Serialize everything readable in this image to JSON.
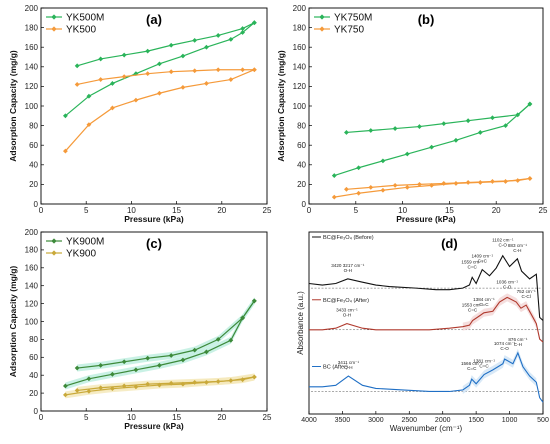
{
  "charts": [
    {
      "type": "line",
      "panel": "(a)",
      "xlabel": "Pressure (kPa)",
      "ylabel": "Adsorption Capacity (mg/g)",
      "xlim": [
        0,
        25
      ],
      "ylim": [
        0,
        200
      ],
      "xticks": [
        0,
        5,
        10,
        15,
        20,
        25
      ],
      "yticks": [
        0,
        20,
        40,
        60,
        80,
        100,
        120,
        140,
        160,
        180,
        200
      ],
      "legend_position": "top-left",
      "series": [
        {
          "name": "YK500M",
          "color": "#2ab45a",
          "adsorption": [
            [
              2.7,
              90
            ],
            [
              5.3,
              110
            ],
            [
              7.9,
              123
            ],
            [
              10.5,
              133
            ],
            [
              13.1,
              143
            ],
            [
              15.7,
              151
            ],
            [
              18.3,
              160
            ],
            [
              21.0,
              168
            ],
            [
              22.3,
              175
            ],
            [
              23.6,
              185
            ]
          ],
          "desorption": [
            [
              4.0,
              141
            ],
            [
              6.6,
              148
            ],
            [
              9.2,
              152
            ],
            [
              11.8,
              156
            ],
            [
              14.4,
              162
            ],
            [
              17.0,
              167
            ],
            [
              19.6,
              172
            ],
            [
              22.3,
              179
            ],
            [
              23.6,
              185
            ]
          ]
        },
        {
          "name": "YK500",
          "color": "#f59a3a",
          "adsorption": [
            [
              2.7,
              54
            ],
            [
              5.3,
              81
            ],
            [
              7.9,
              98
            ],
            [
              10.5,
              106
            ],
            [
              13.1,
              113
            ],
            [
              15.7,
              119
            ],
            [
              18.3,
              123
            ],
            [
              21.0,
              127
            ],
            [
              23.6,
              137
            ]
          ],
          "desorption": [
            [
              4.0,
              122
            ],
            [
              6.6,
              127
            ],
            [
              9.2,
              130
            ],
            [
              11.8,
              133
            ],
            [
              14.4,
              135
            ],
            [
              17.0,
              136
            ],
            [
              19.6,
              137
            ],
            [
              22.3,
              137
            ],
            [
              23.6,
              137
            ]
          ]
        }
      ]
    },
    {
      "type": "line",
      "panel": "(b)",
      "xlabel": "Pressure (kPa)",
      "ylabel": "Adsorption Capacity (mg/g)",
      "xlim": [
        0,
        25
      ],
      "ylim": [
        0,
        200
      ],
      "xticks": [
        0,
        5,
        10,
        15,
        20,
        25
      ],
      "yticks": [
        0,
        20,
        40,
        60,
        80,
        100,
        120,
        140,
        160,
        180,
        200
      ],
      "legend_position": "top-left",
      "series": [
        {
          "name": "YK750M",
          "color": "#2ab45a",
          "adsorption": [
            [
              2.7,
              29
            ],
            [
              5.3,
              37
            ],
            [
              7.9,
              44
            ],
            [
              10.5,
              51
            ],
            [
              13.1,
              58
            ],
            [
              15.7,
              65
            ],
            [
              18.3,
              73
            ],
            [
              21.0,
              80
            ],
            [
              23.6,
              102
            ]
          ],
          "desorption": [
            [
              4.0,
              73
            ],
            [
              6.6,
              75
            ],
            [
              9.2,
              77
            ],
            [
              11.8,
              79
            ],
            [
              14.4,
              82
            ],
            [
              17.0,
              85
            ],
            [
              19.6,
              88
            ],
            [
              22.3,
              91
            ],
            [
              23.6,
              102
            ]
          ]
        },
        {
          "name": "YK750",
          "color": "#f59a3a",
          "adsorption": [
            [
              2.7,
              7
            ],
            [
              5.3,
              11
            ],
            [
              7.9,
              14
            ],
            [
              10.5,
              17
            ],
            [
              13.1,
              19
            ],
            [
              15.7,
              21
            ],
            [
              18.3,
              22
            ],
            [
              21.0,
              23
            ],
            [
              23.6,
              26
            ]
          ],
          "desorption": [
            [
              4.0,
              15
            ],
            [
              6.6,
              17
            ],
            [
              9.2,
              19
            ],
            [
              11.8,
              20
            ],
            [
              14.4,
              21
            ],
            [
              17.0,
              22
            ],
            [
              19.6,
              23
            ],
            [
              22.3,
              24
            ],
            [
              23.6,
              26
            ]
          ]
        }
      ]
    },
    {
      "type": "line",
      "panel": "(c)",
      "xlabel": "Pressure (kPa)",
      "ylabel": "Adsorption Capacity (mg/g)",
      "xlim": [
        0,
        25
      ],
      "ylim": [
        0,
        200
      ],
      "xticks": [
        0,
        5,
        10,
        15,
        20,
        25
      ],
      "yticks": [
        0,
        20,
        40,
        60,
        80,
        100,
        120,
        140,
        160,
        180,
        200
      ],
      "legend_position": "top-left",
      "series": [
        {
          "name": "YK900M",
          "color": "#3d8a3a",
          "band_color": "#bfeee0",
          "adsorption": [
            [
              2.7,
              28
            ],
            [
              5.3,
              36
            ],
            [
              7.9,
              41
            ],
            [
              10.5,
              46
            ],
            [
              13.1,
              51
            ],
            [
              15.7,
              57
            ],
            [
              18.3,
              66
            ],
            [
              21.0,
              79
            ],
            [
              22.3,
              104
            ],
            [
              23.6,
              123
            ]
          ],
          "desorption": [
            [
              4.0,
              48
            ],
            [
              6.6,
              51
            ],
            [
              9.2,
              55
            ],
            [
              11.8,
              59
            ],
            [
              14.4,
              62
            ],
            [
              17.0,
              68
            ],
            [
              19.6,
              80
            ],
            [
              22.3,
              104
            ],
            [
              23.6,
              123
            ]
          ]
        },
        {
          "name": "YK900",
          "color": "#c9a93a",
          "band_color": "#f5e9bb",
          "adsorption": [
            [
              2.7,
              18
            ],
            [
              5.3,
              22
            ],
            [
              7.9,
              25
            ],
            [
              10.5,
              27
            ],
            [
              13.1,
              29
            ],
            [
              15.7,
              30
            ],
            [
              18.3,
              32
            ],
            [
              21.0,
              34
            ],
            [
              23.6,
              38
            ]
          ],
          "desorption": [
            [
              4.0,
              23
            ],
            [
              6.6,
              26
            ],
            [
              9.2,
              28
            ],
            [
              11.8,
              30
            ],
            [
              14.4,
              31
            ],
            [
              17.0,
              32
            ],
            [
              19.6,
              33
            ],
            [
              22.3,
              35
            ],
            [
              23.6,
              38
            ]
          ]
        }
      ]
    },
    {
      "type": "line",
      "panel": "(d)",
      "xlabel": "Wavenumber (cm⁻¹)",
      "ylabel": "Absorbance (a.u.)",
      "xlim": [
        4000,
        500
      ],
      "xticks": [
        4000,
        3500,
        3000,
        2500,
        2000,
        1500,
        1000,
        500
      ],
      "x_reversed": true,
      "legend_position": "top-left of each trace",
      "series": [
        {
          "name": "BC@Fe₃O₄ (Before)",
          "color": "#111111",
          "peaks": [
            [
              4000,
              0.82
            ],
            [
              3800,
              0.81
            ],
            [
              3600,
              0.82
            ],
            [
              3420,
              0.85
            ],
            [
              3217,
              0.83
            ],
            [
              3000,
              0.81
            ],
            [
              2800,
              0.8
            ],
            [
              2400,
              0.79
            ],
            [
              2100,
              0.78
            ],
            [
              1900,
              0.78
            ],
            [
              1700,
              0.79
            ],
            [
              1600,
              0.81
            ],
            [
              1559,
              0.86
            ],
            [
              1500,
              0.82
            ],
            [
              1409,
              0.91
            ],
            [
              1300,
              0.87
            ],
            [
              1200,
              0.92
            ],
            [
              1102,
              1.0
            ],
            [
              1000,
              0.93
            ],
            [
              883,
              0.98
            ],
            [
              820,
              0.9
            ],
            [
              700,
              0.85
            ],
            [
              600,
              0.88
            ],
            [
              550,
              0.6
            ],
            [
              500,
              0.58
            ]
          ],
          "annotations": [
            {
              "x": 3420,
              "label": "3420 3217 cm⁻¹",
              "sub": "O-H"
            },
            {
              "x": 1559,
              "label": "1559 cm⁻¹",
              "sub": "C=C"
            },
            {
              "x": 1409,
              "label": "1409 cm⁻¹",
              "sub": "C=C"
            },
            {
              "x": 1102,
              "label": "1102 cm⁻¹",
              "sub": "C-O"
            },
            {
              "x": 883,
              "label": "883 cm⁻¹",
              "sub": "C-H"
            }
          ]
        },
        {
          "name": "BC@Fe₃O₄ (After)",
          "color": "#b03a2e",
          "band_color": "#f3d6d6",
          "peaks": [
            [
              4000,
              0.52
            ],
            [
              3800,
              0.52
            ],
            [
              3600,
              0.53
            ],
            [
              3433,
              0.56
            ],
            [
              3200,
              0.53
            ],
            [
              3000,
              0.52
            ],
            [
              2600,
              0.52
            ],
            [
              2200,
              0.52
            ],
            [
              1900,
              0.53
            ],
            [
              1700,
              0.54
            ],
            [
              1600,
              0.55
            ],
            [
              1553,
              0.58
            ],
            [
              1450,
              0.61
            ],
            [
              1384,
              0.63
            ],
            [
              1250,
              0.64
            ],
            [
              1150,
              0.7
            ],
            [
              1036,
              0.73
            ],
            [
              900,
              0.7
            ],
            [
              830,
              0.66
            ],
            [
              752,
              0.68
            ],
            [
              650,
              0.6
            ],
            [
              600,
              0.56
            ],
            [
              550,
              0.46
            ],
            [
              500,
              0.44
            ]
          ],
          "annotations": [
            {
              "x": 3433,
              "label": "3433 cm⁻¹",
              "sub": "O-H"
            },
            {
              "x": 1553,
              "label": "1553 cm⁻¹",
              "sub": "C=C"
            },
            {
              "x": 1384,
              "label": "1384 cm⁻¹",
              "sub": "C=C"
            },
            {
              "x": 1036,
              "label": "1036 cm⁻¹",
              "sub": "C-O"
            },
            {
              "x": 752,
              "label": "752 cm⁻¹",
              "sub": "C-Cl"
            }
          ]
        },
        {
          "name": "BC (After)",
          "color": "#1f6fc5",
          "band_color": "#cfe3f5",
          "peaks": [
            [
              4000,
              0.15
            ],
            [
              3800,
              0.15
            ],
            [
              3600,
              0.16
            ],
            [
              3411,
              0.22
            ],
            [
              3200,
              0.16
            ],
            [
              3000,
              0.14
            ],
            [
              2600,
              0.13
            ],
            [
              2200,
              0.12
            ],
            [
              1900,
              0.12
            ],
            [
              1700,
              0.13
            ],
            [
              1600,
              0.16
            ],
            [
              1566,
              0.2
            ],
            [
              1500,
              0.17
            ],
            [
              1381,
              0.23
            ],
            [
              1250,
              0.26
            ],
            [
              1100,
              0.3
            ],
            [
              1074,
              0.33
            ],
            [
              950,
              0.3
            ],
            [
              876,
              0.37
            ],
            [
              800,
              0.28
            ],
            [
              700,
              0.22
            ],
            [
              600,
              0.18
            ],
            [
              550,
              0.08
            ],
            [
              500,
              0.05
            ]
          ],
          "annotations": [
            {
              "x": 3411,
              "label": "3411 cm⁻¹",
              "sub": "O-H"
            },
            {
              "x": 1566,
              "label": "1566 cm⁻¹",
              "sub": "C=C"
            },
            {
              "x": 1381,
              "label": "1381 cm⁻¹",
              "sub": "C=C"
            },
            {
              "x": 1074,
              "label": "1074 cm⁻¹",
              "sub": "C-O"
            },
            {
              "x": 876,
              "label": "876 cm⁻¹",
              "sub": "C-H"
            }
          ]
        }
      ]
    }
  ]
}
